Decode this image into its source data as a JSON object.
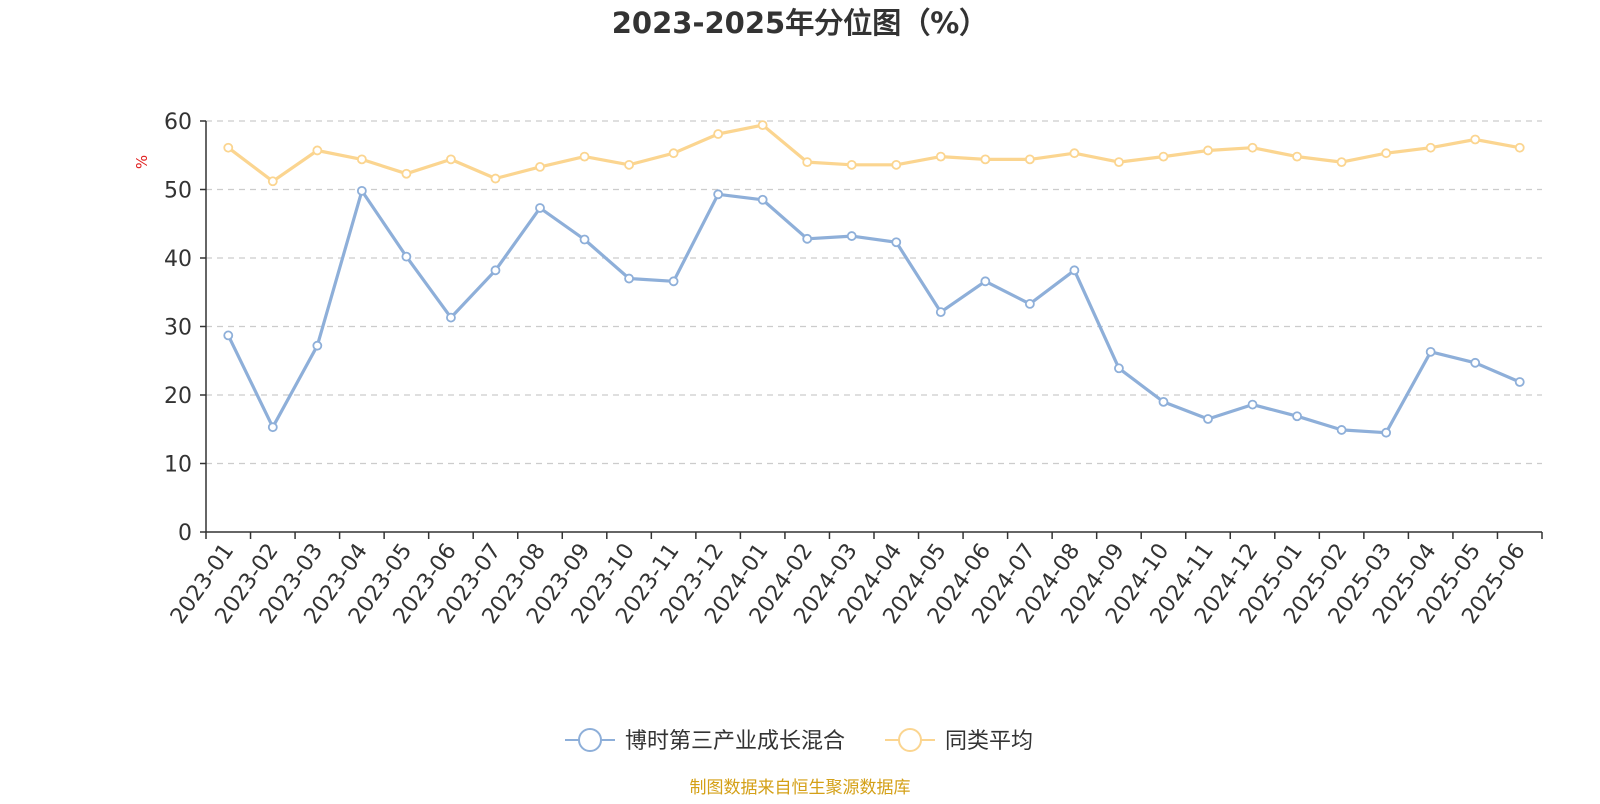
{
  "chart_data": {
    "type": "line",
    "title": "2023-2025年分位图（%）",
    "ylabel": "%",
    "ylim": [
      0,
      60
    ],
    "yticks": [
      0,
      10,
      20,
      30,
      40,
      50,
      60
    ],
    "grid": true,
    "legend_position": "bottom-center",
    "categories": [
      "2023-01",
      "2023-02",
      "2023-03",
      "2023-04",
      "2023-05",
      "2023-06",
      "2023-07",
      "2023-08",
      "2023-09",
      "2023-10",
      "2023-11",
      "2023-12",
      "2024-01",
      "2024-02",
      "2024-03",
      "2024-04",
      "2024-05",
      "2024-06",
      "2024-07",
      "2024-08",
      "2024-09",
      "2024-10",
      "2024-11",
      "2024-12",
      "2025-01",
      "2025-02",
      "2025-03",
      "2025-04",
      "2025-05",
      "2025-06"
    ],
    "series": [
      {
        "name": "博时第三产业成长混合",
        "color": "#8eafd9",
        "values": [
          28.7,
          15.3,
          27.2,
          49.8,
          40.2,
          31.3,
          38.2,
          47.3,
          42.7,
          37.0,
          36.6,
          49.3,
          48.5,
          42.8,
          43.2,
          42.3,
          32.1,
          36.6,
          33.3,
          38.2,
          23.9,
          19.0,
          16.5,
          18.6,
          16.9,
          14.9,
          14.5,
          26.3,
          24.7,
          21.9
        ]
      },
      {
        "name": "同类平均",
        "color": "#fbd590",
        "values": [
          56.1,
          51.2,
          55.7,
          54.4,
          52.3,
          54.4,
          51.6,
          53.3,
          54.8,
          53.6,
          55.3,
          58.1,
          59.4,
          54.0,
          53.6,
          53.6,
          54.8,
          54.4,
          54.4,
          55.3,
          54.0,
          54.8,
          55.7,
          56.1,
          54.8,
          54.0,
          55.3,
          56.1,
          57.3,
          56.1
        ]
      }
    ]
  },
  "footer": {
    "source": "制图数据来自恒生聚源数据库",
    "source_color": "#d4a017"
  },
  "colors": {
    "title": "#333333",
    "axis": "#333333",
    "grid": "#cccccc",
    "ylabel": "#e02020"
  }
}
